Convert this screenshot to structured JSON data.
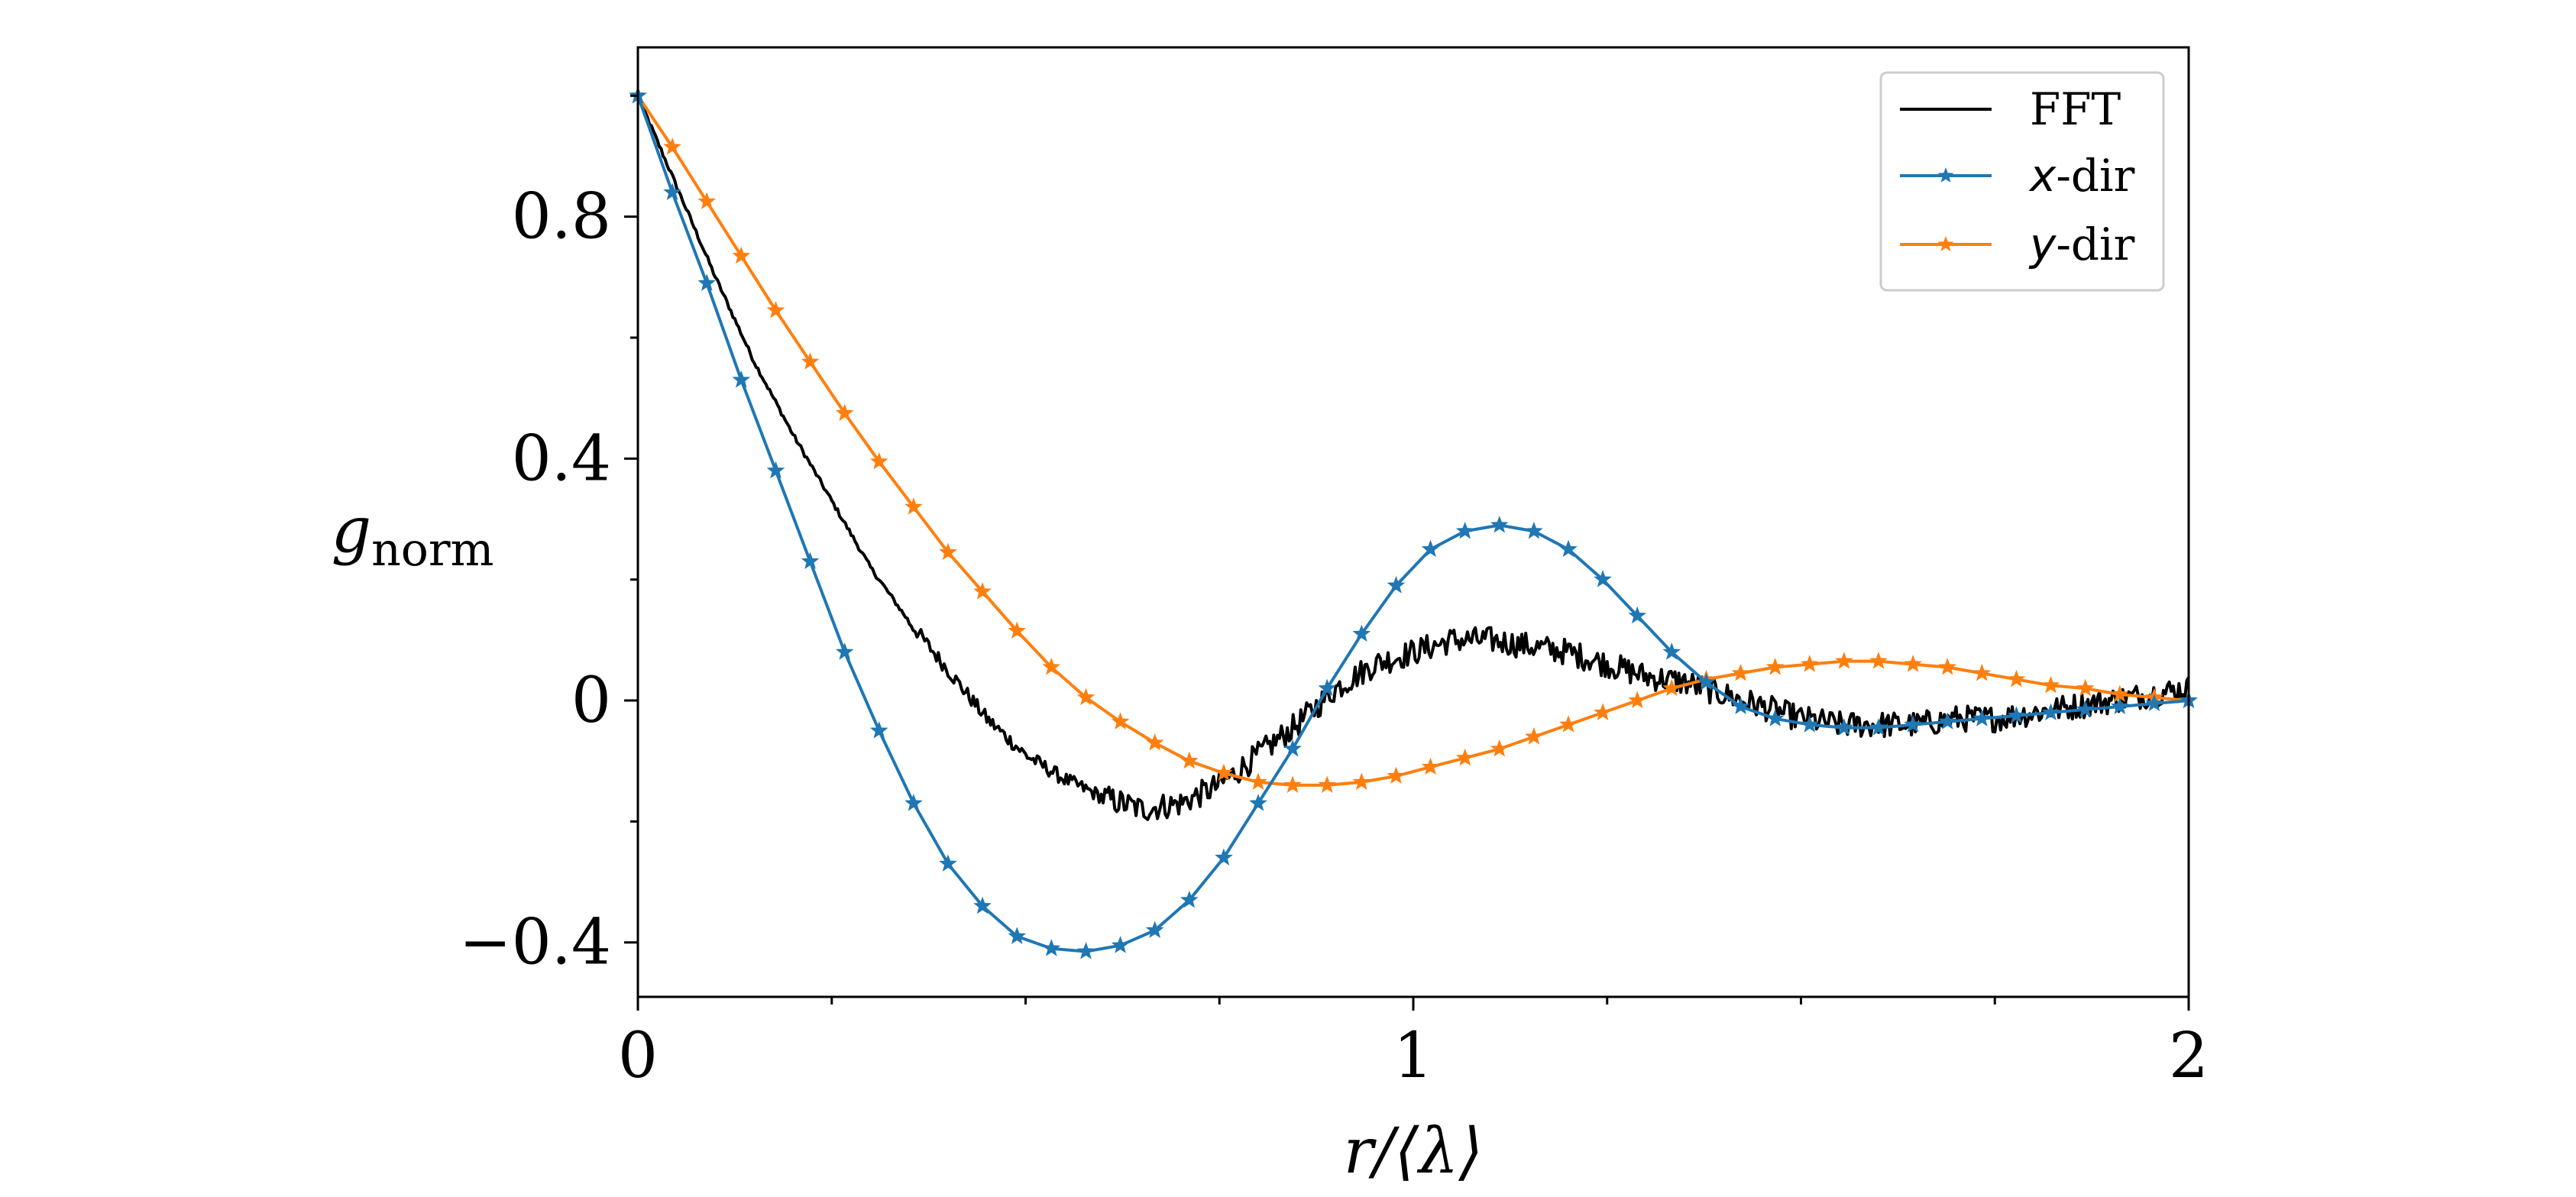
{
  "chart_data": {
    "type": "line",
    "title": "",
    "xlabel": "r/⟨λ⟩",
    "ylabel": "g",
    "ylabel_subscript": "norm",
    "xlim": [
      0,
      2
    ],
    "ylim": [
      -0.49,
      1.08
    ],
    "xticks": [
      0,
      0.25,
      0.5,
      0.75,
      1,
      1.25,
      1.5,
      1.75,
      2
    ],
    "xtick_labels": [
      {
        "value": 0,
        "label": "0"
      },
      {
        "value": 1,
        "label": "1"
      },
      {
        "value": 2,
        "label": "2"
      }
    ],
    "yticks": [
      -0.4,
      -0.2,
      0,
      0.2,
      0.4,
      0.6,
      0.8,
      1.0
    ],
    "ytick_labels": [
      {
        "value": -0.4,
        "label": "−0.4"
      },
      {
        "value": 0,
        "label": "0"
      },
      {
        "value": 0.4,
        "label": "0.4"
      },
      {
        "value": 0.8,
        "label": "0.8"
      }
    ],
    "legend_position": "top-right",
    "series": [
      {
        "name": "FFT",
        "legend_label": "FFT",
        "color": "#000000",
        "marker": "none",
        "noisy": true,
        "x": [
          0,
          0.05,
          0.1,
          0.15,
          0.2,
          0.25,
          0.3,
          0.35,
          0.4,
          0.45,
          0.5,
          0.55,
          0.6,
          0.65,
          0.7,
          0.75,
          0.8,
          0.85,
          0.9,
          0.95,
          1.0,
          1.05,
          1.1,
          1.15,
          1.2,
          1.25,
          1.3,
          1.35,
          1.4,
          1.45,
          1.5,
          1.55,
          1.6,
          1.65,
          1.7,
          1.75,
          1.8,
          1.85,
          1.9,
          1.95,
          2.0
        ],
        "y": [
          1.0,
          0.85,
          0.7,
          0.56,
          0.44,
          0.33,
          0.22,
          0.13,
          0.05,
          -0.03,
          -0.09,
          -0.13,
          -0.16,
          -0.18,
          -0.17,
          -0.14,
          -0.09,
          -0.04,
          0.02,
          0.06,
          0.08,
          0.1,
          0.1,
          0.09,
          0.08,
          0.06,
          0.04,
          0.03,
          0.01,
          -0.01,
          -0.03,
          -0.04,
          -0.04,
          -0.04,
          -0.03,
          -0.03,
          -0.02,
          -0.01,
          0.0,
          0.01,
          0.02
        ]
      },
      {
        "name": "x-dir",
        "legend_var": "x",
        "legend_suffix": "-dir",
        "color": "#1f77b4",
        "marker": "star",
        "x": [
          0,
          0.0444,
          0.0889,
          0.1333,
          0.1778,
          0.2222,
          0.2667,
          0.3111,
          0.3556,
          0.4,
          0.4444,
          0.4889,
          0.5333,
          0.5778,
          0.6222,
          0.6667,
          0.7111,
          0.7556,
          0.8,
          0.8444,
          0.8889,
          0.9333,
          0.9778,
          1.0222,
          1.0667,
          1.1111,
          1.1556,
          1.2,
          1.2444,
          1.2889,
          1.3333,
          1.3778,
          1.4222,
          1.4667,
          1.5111,
          1.5556,
          1.6,
          1.6444,
          1.6889,
          1.7333,
          1.7778,
          1.8222,
          1.8667,
          1.9111,
          1.9556,
          2.0
        ],
        "y": [
          1.0,
          0.84,
          0.69,
          0.53,
          0.38,
          0.23,
          0.08,
          -0.05,
          -0.17,
          -0.27,
          -0.34,
          -0.39,
          -0.41,
          -0.415,
          -0.405,
          -0.38,
          -0.33,
          -0.26,
          -0.17,
          -0.08,
          0.02,
          0.11,
          0.19,
          0.25,
          0.28,
          0.29,
          0.28,
          0.25,
          0.2,
          0.14,
          0.08,
          0.03,
          -0.01,
          -0.03,
          -0.04,
          -0.045,
          -0.045,
          -0.04,
          -0.035,
          -0.03,
          -0.025,
          -0.02,
          -0.015,
          -0.01,
          -0.005,
          0.0
        ]
      },
      {
        "name": "y-dir",
        "legend_var": "y",
        "legend_suffix": "-dir",
        "color": "#ff7f0e",
        "marker": "star",
        "x": [
          0,
          0.0444,
          0.0889,
          0.1333,
          0.1778,
          0.2222,
          0.2667,
          0.3111,
          0.3556,
          0.4,
          0.4444,
          0.4889,
          0.5333,
          0.5778,
          0.6222,
          0.6667,
          0.7111,
          0.7556,
          0.8,
          0.8444,
          0.8889,
          0.9333,
          0.9778,
          1.0222,
          1.0667,
          1.1111,
          1.1556,
          1.2,
          1.2444,
          1.2889,
          1.3333,
          1.3778,
          1.4222,
          1.4667,
          1.5111,
          1.5556,
          1.6,
          1.6444,
          1.6889,
          1.7333,
          1.7778,
          1.8222,
          1.8667,
          1.9111,
          1.9556,
          2.0
        ],
        "y": [
          1.0,
          0.915,
          0.825,
          0.735,
          0.645,
          0.56,
          0.475,
          0.395,
          0.32,
          0.245,
          0.18,
          0.115,
          0.055,
          0.005,
          -0.035,
          -0.07,
          -0.1,
          -0.12,
          -0.135,
          -0.14,
          -0.14,
          -0.135,
          -0.125,
          -0.11,
          -0.095,
          -0.08,
          -0.06,
          -0.04,
          -0.02,
          0.0,
          0.02,
          0.035,
          0.045,
          0.055,
          0.06,
          0.065,
          0.065,
          0.06,
          0.055,
          0.045,
          0.035,
          0.025,
          0.02,
          0.01,
          0.005,
          0.0
        ]
      }
    ]
  }
}
